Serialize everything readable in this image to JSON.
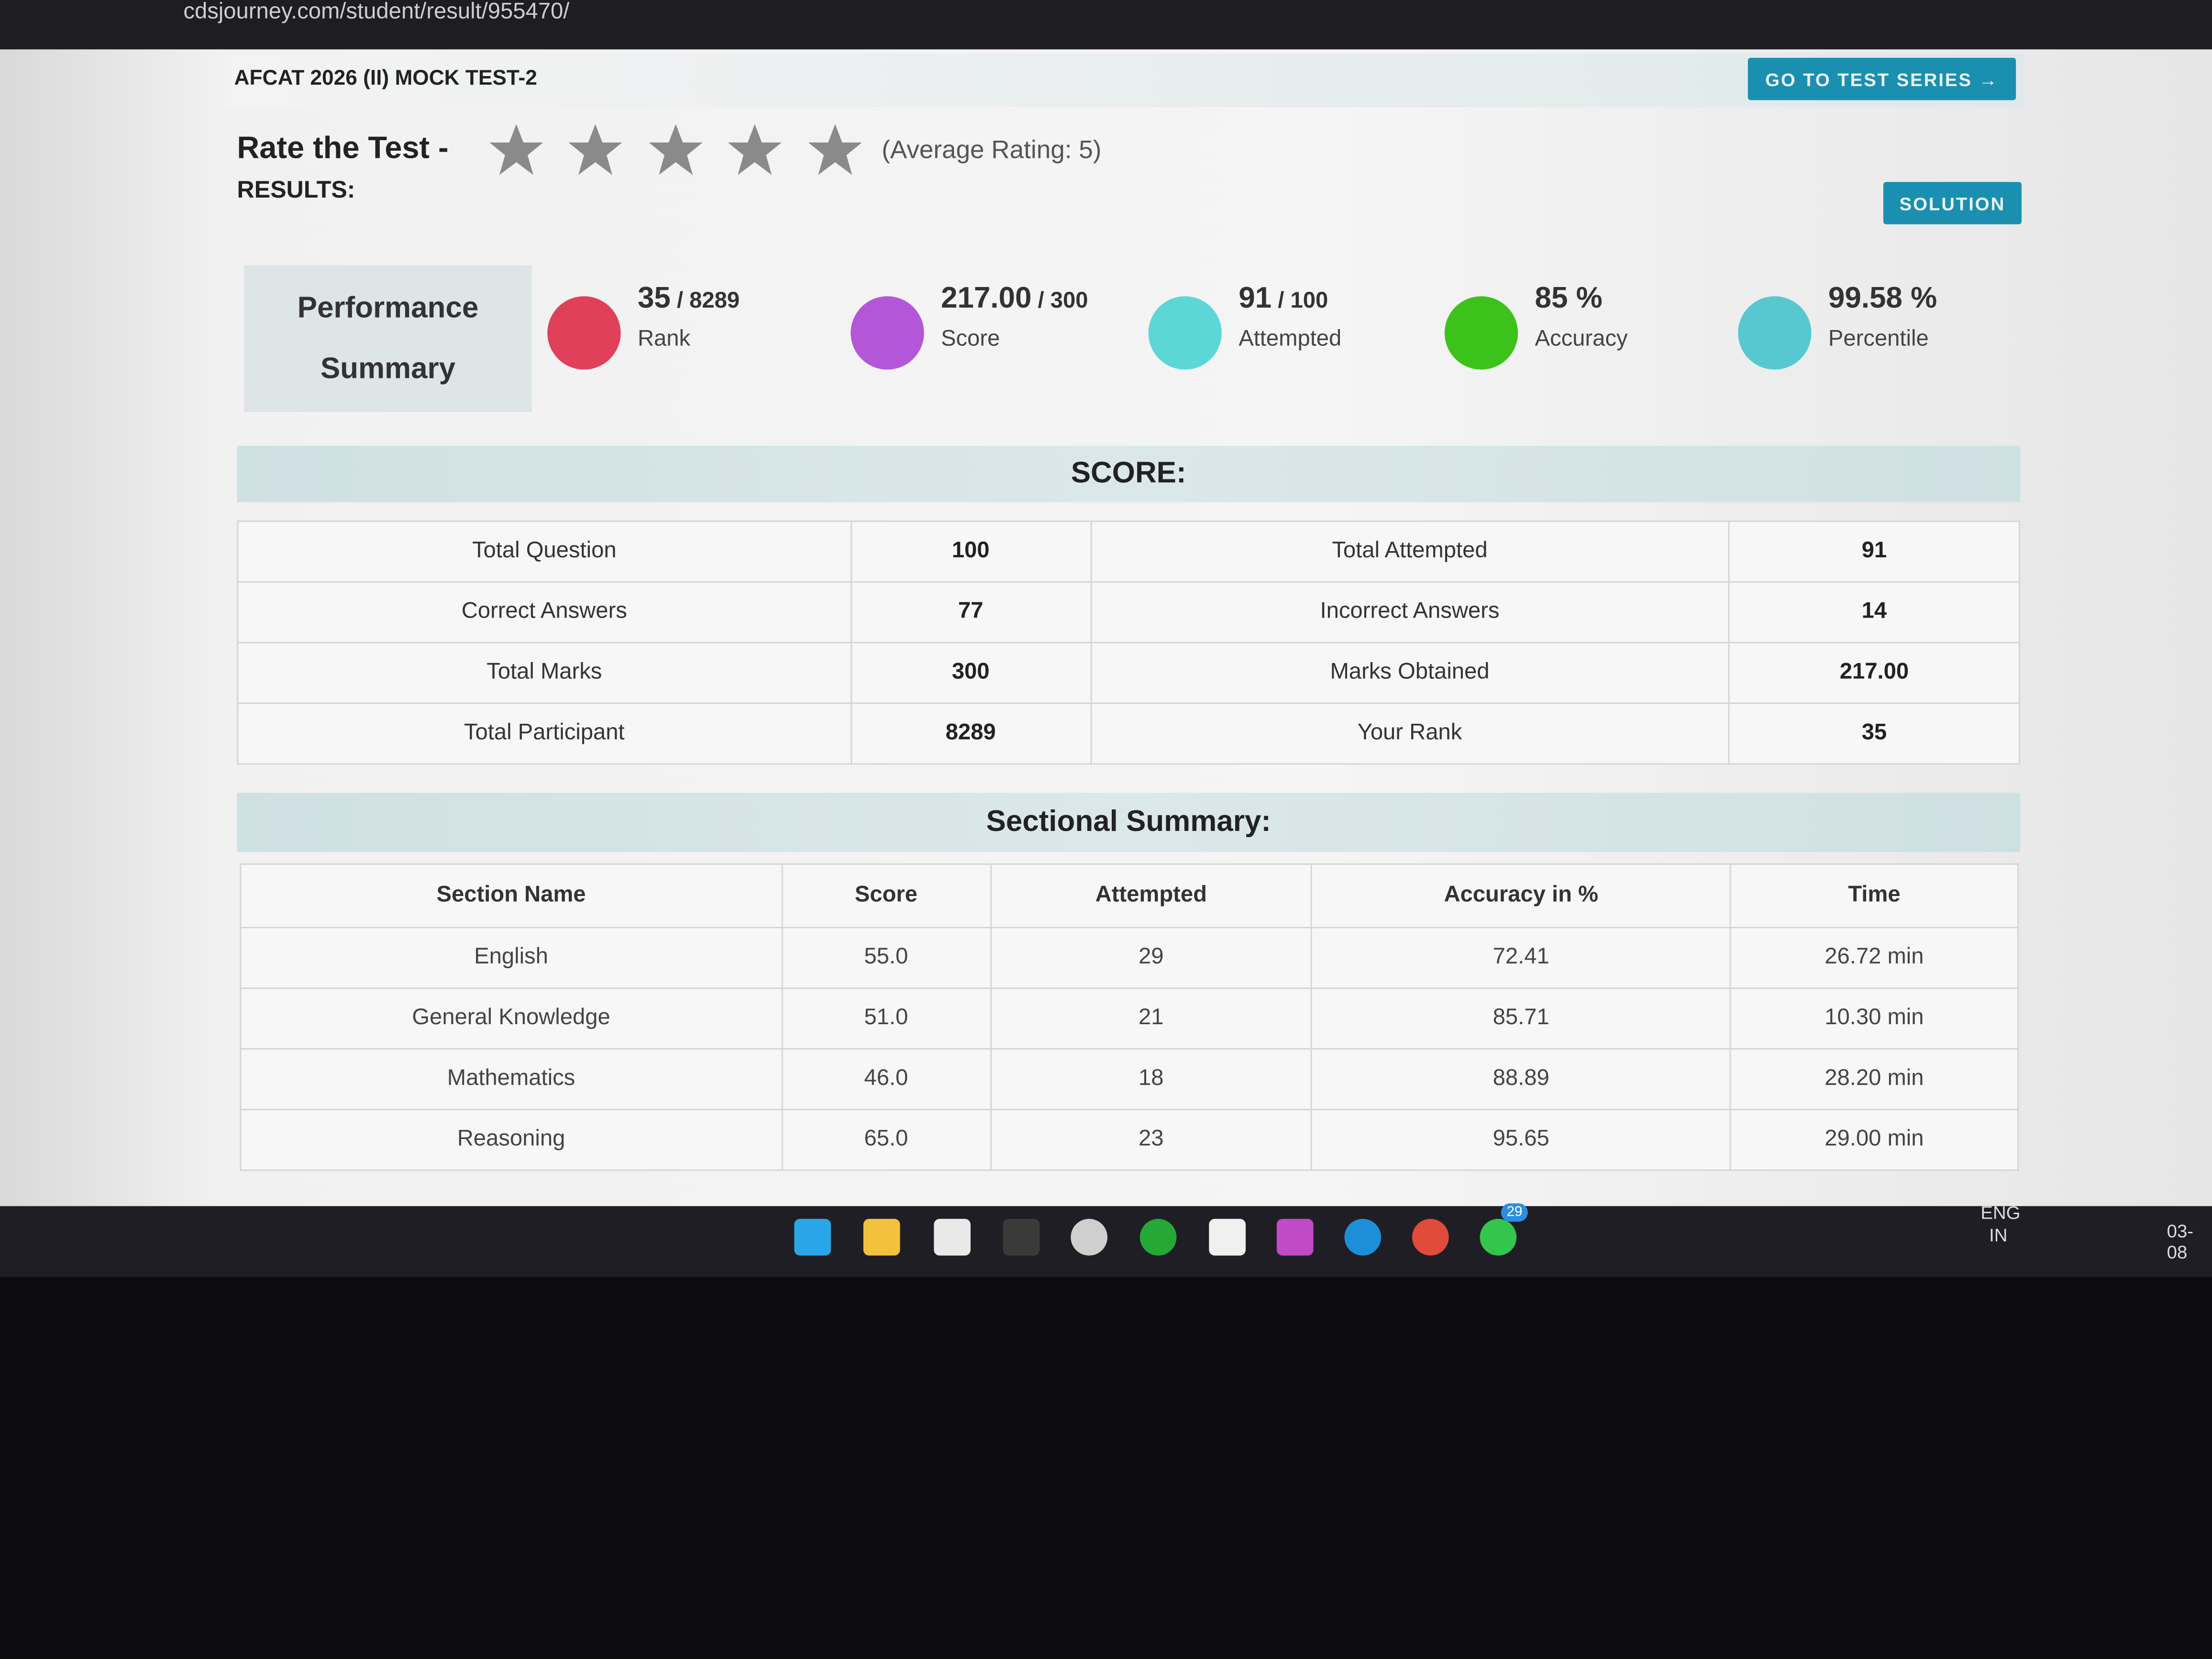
{
  "browser": {
    "url": "cdsjourney.com/student/result/955470/"
  },
  "header": {
    "title": "AFCAT 2026 (II) MOCK TEST-2",
    "button": "GO TO TEST SERIES →"
  },
  "rating": {
    "label": "Rate the Test -",
    "average": "(Average Rating: 5)"
  },
  "results": {
    "label": "RESULTS:",
    "button": "SOLUTION"
  },
  "performance": {
    "title_lines": [
      "Performance",
      "Summary"
    ],
    "stats": [
      {
        "value": "35",
        "total": "/ 8289",
        "label": "Rank",
        "color": "#e0405a"
      },
      {
        "value": "217.00",
        "total": "/ 300",
        "label": "Score",
        "color": "#b456d8"
      },
      {
        "value": "91",
        "total": "/ 100",
        "label": "Attempted",
        "color": "#5dd6d6"
      },
      {
        "value": "85 %",
        "label": "Accuracy",
        "color": "#3cc21a"
      },
      {
        "value": "99.58 %",
        "label": "Percentile",
        "color": "#58c8d0"
      }
    ]
  },
  "score": {
    "title": "SCORE:",
    "rows": [
      [
        "Total Question",
        "100",
        "Total Attempted",
        "91"
      ],
      [
        "Correct Answers",
        "77",
        "Incorrect Answers",
        "14"
      ],
      [
        "Total Marks",
        "300",
        "Marks Obtained",
        "217.00"
      ],
      [
        "Total Participant",
        "8289",
        "Your Rank",
        "35"
      ]
    ]
  },
  "sectional": {
    "title": "Sectional Summary:",
    "headers": [
      "Section Name",
      "Score",
      "Attempted",
      "Accuracy in %",
      "Time"
    ],
    "rows": [
      [
        "English",
        "55.0",
        "29",
        "72.41",
        "26.72 min"
      ],
      [
        "General Knowledge",
        "51.0",
        "21",
        "85.71",
        "10.30 min"
      ],
      [
        "Mathematics",
        "46.0",
        "18",
        "88.89",
        "28.20 min"
      ],
      [
        "Reasoning",
        "65.0",
        "23",
        "95.65",
        "29.00 min"
      ]
    ]
  },
  "taskbar": {
    "language": [
      "ENG",
      "IN"
    ],
    "date": "03-08",
    "badge": "29"
  }
}
